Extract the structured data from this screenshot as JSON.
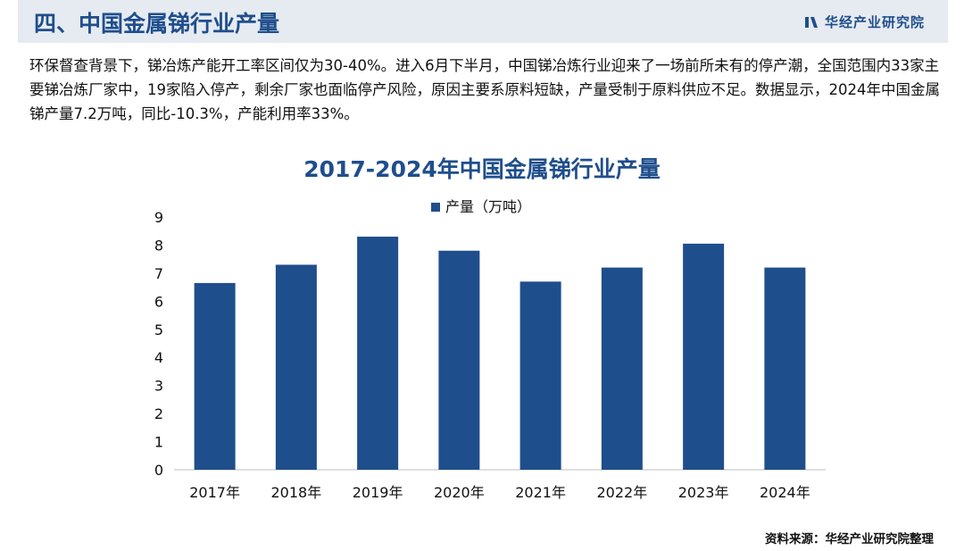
{
  "header": {
    "title": "四、中国金属锑行业产量",
    "brand": "华经产业研究院"
  },
  "description": "环保督查背景下，锑冶炼产能开工率区间仅为30-40%。进入6月下半月，中国锑冶炼行业迎来了一场前所未有的停产潮，全国范围内33家主要锑冶炼厂家中，19家陷入停产，剩余厂家也面临停产风险，原因主要系原料短缺，产量受制于原料供应不足。数据显示，2024年中国金属锑产量7.2万吨，同比-10.3%，产能利用率33%。",
  "chart_data": {
    "type": "bar",
    "title": "2017-2024年中国金属锑行业产量",
    "categories": [
      "2017年",
      "2018年",
      "2019年",
      "2020年",
      "2021年",
      "2022年",
      "2023年",
      "2024年"
    ],
    "series": [
      {
        "name": "产量（万吨）",
        "values": [
          6.65,
          7.3,
          8.3,
          7.8,
          6.7,
          7.2,
          8.05,
          7.2
        ]
      }
    ],
    "ylim": [
      0,
      9
    ],
    "yticks": [
      0,
      1,
      2,
      3,
      4,
      5,
      6,
      7,
      8,
      9
    ],
    "xlabel": "",
    "ylabel": "",
    "legend": "top-center",
    "grid": false,
    "bar_color": "#1f4e8c"
  },
  "source": "资料来源：华经产业研究院整理",
  "colors": {
    "accent": "#1f4e8c",
    "header_bg": "#e6ebf1"
  }
}
